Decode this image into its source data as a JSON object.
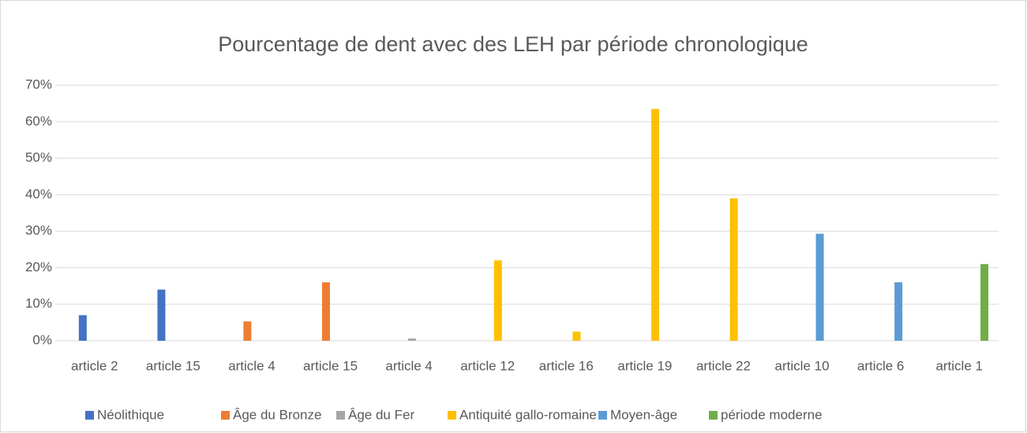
{
  "chart_data": {
    "type": "bar",
    "title": "Pourcentage de dent avec des LEH par période chronologique",
    "categories": [
      "article 2",
      "article 15",
      "article 4",
      "article 15",
      "article 4",
      "article 12",
      "article 16",
      "article 19",
      "article 22",
      "article 10",
      "article 6",
      "article 1"
    ],
    "series": [
      {
        "name": "Néolithique",
        "color": "#4472c4",
        "values": [
          7,
          14,
          null,
          null,
          null,
          null,
          null,
          null,
          null,
          null,
          null,
          null
        ]
      },
      {
        "name": "Âge du Bronze",
        "color": "#ed7d31",
        "values": [
          null,
          null,
          5.3,
          16,
          null,
          null,
          null,
          null,
          null,
          null,
          null,
          null
        ]
      },
      {
        "name": "Âge du Fer",
        "color": "#a5a5a5",
        "values": [
          null,
          null,
          null,
          null,
          0.6,
          null,
          null,
          null,
          null,
          null,
          null,
          null
        ]
      },
      {
        "name": "Antiquité gallo-romaine",
        "color": "#ffc000",
        "values": [
          null,
          null,
          null,
          null,
          null,
          22,
          2.5,
          63.5,
          39,
          null,
          null,
          null
        ]
      },
      {
        "name": "Moyen-âge",
        "color": "#5b9bd5",
        "values": [
          null,
          null,
          null,
          null,
          null,
          null,
          null,
          null,
          null,
          29.3,
          16,
          null
        ]
      },
      {
        "name": "période moderne",
        "color": "#70ad47",
        "values": [
          null,
          null,
          null,
          null,
          null,
          null,
          null,
          null,
          null,
          null,
          null,
          21
        ]
      }
    ],
    "ylim": [
      0,
      70
    ],
    "yticks": [
      {
        "value": 0,
        "label": "0%"
      },
      {
        "value": 10,
        "label": "10%"
      },
      {
        "value": 20,
        "label": "20%"
      },
      {
        "value": 30,
        "label": "30%"
      },
      {
        "value": 40,
        "label": "40%"
      },
      {
        "value": 50,
        "label": "50%"
      },
      {
        "value": 60,
        "label": "60%"
      },
      {
        "value": 70,
        "label": "70%"
      }
    ],
    "grid": true,
    "legend": "bottom"
  }
}
